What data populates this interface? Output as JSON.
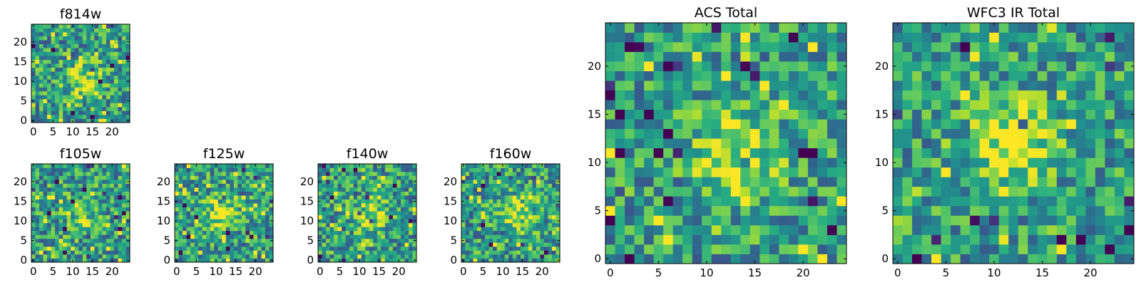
{
  "chart_data": [
    {
      "type": "heatmap",
      "title": "f814w",
      "cmap": "viridis",
      "shape": [
        25,
        25
      ],
      "origin": "lower",
      "xticks": [
        0,
        5,
        10,
        15,
        20
      ],
      "yticks": [
        0,
        5,
        10,
        15,
        20
      ],
      "seed": 11,
      "source_amp": 0.35,
      "source_center": [
        13,
        10
      ],
      "source_sigma": 3.5,
      "noise": 0.6
    },
    {
      "type": "heatmap",
      "title": "f105w",
      "cmap": "viridis",
      "shape": [
        25,
        25
      ],
      "origin": "lower",
      "xticks": [
        0,
        5,
        10,
        15,
        20
      ],
      "yticks": [
        0,
        5,
        10,
        15,
        20
      ],
      "seed": 23,
      "source_amp": 0.15,
      "source_center": [
        12,
        12
      ],
      "source_sigma": 4,
      "noise": 0.6
    },
    {
      "type": "heatmap",
      "title": "f125w",
      "cmap": "viridis",
      "shape": [
        25,
        25
      ],
      "origin": "lower",
      "xticks": [
        0,
        5,
        10,
        15,
        20
      ],
      "yticks": [
        0,
        5,
        10,
        15,
        20
      ],
      "seed": 37,
      "source_amp": 0.45,
      "source_center": [
        11,
        12
      ],
      "source_sigma": 2.8,
      "noise": 0.6
    },
    {
      "type": "heatmap",
      "title": "f140w",
      "cmap": "viridis",
      "shape": [
        25,
        25
      ],
      "origin": "lower",
      "xticks": [
        0,
        5,
        10,
        15,
        20
      ],
      "yticks": [
        0,
        5,
        10,
        15,
        20
      ],
      "seed": 41,
      "source_amp": 0.3,
      "source_center": [
        13,
        12
      ],
      "source_sigma": 3.5,
      "noise": 0.6
    },
    {
      "type": "heatmap",
      "title": "f160w",
      "cmap": "viridis",
      "shape": [
        25,
        25
      ],
      "origin": "lower",
      "xticks": [
        0,
        5,
        10,
        15,
        20
      ],
      "yticks": [
        0,
        5,
        10,
        15,
        20
      ],
      "seed": 53,
      "source_amp": 0.35,
      "source_center": [
        14,
        12
      ],
      "source_sigma": 3.2,
      "noise": 0.6
    },
    {
      "type": "heatmap",
      "title": "ACS Total",
      "cmap": "viridis",
      "shape": [
        25,
        25
      ],
      "origin": "lower",
      "xticks": [
        0,
        5,
        10,
        15,
        20
      ],
      "yticks": [
        0,
        5,
        10,
        15,
        20
      ],
      "seed": 67,
      "source_amp": 0.35,
      "source_center": [
        13,
        11
      ],
      "source_sigma": 3.5,
      "noise": 0.55
    },
    {
      "type": "heatmap",
      "title": "WFC3 IR Total",
      "cmap": "viridis",
      "shape": [
        25,
        25
      ],
      "origin": "lower",
      "xticks": [
        0,
        5,
        10,
        15,
        20
      ],
      "yticks": [
        0,
        5,
        10,
        15,
        20
      ],
      "seed": 79,
      "source_amp": 0.45,
      "source_center": [
        12,
        12
      ],
      "source_sigma": 3,
      "noise": 0.55
    }
  ]
}
